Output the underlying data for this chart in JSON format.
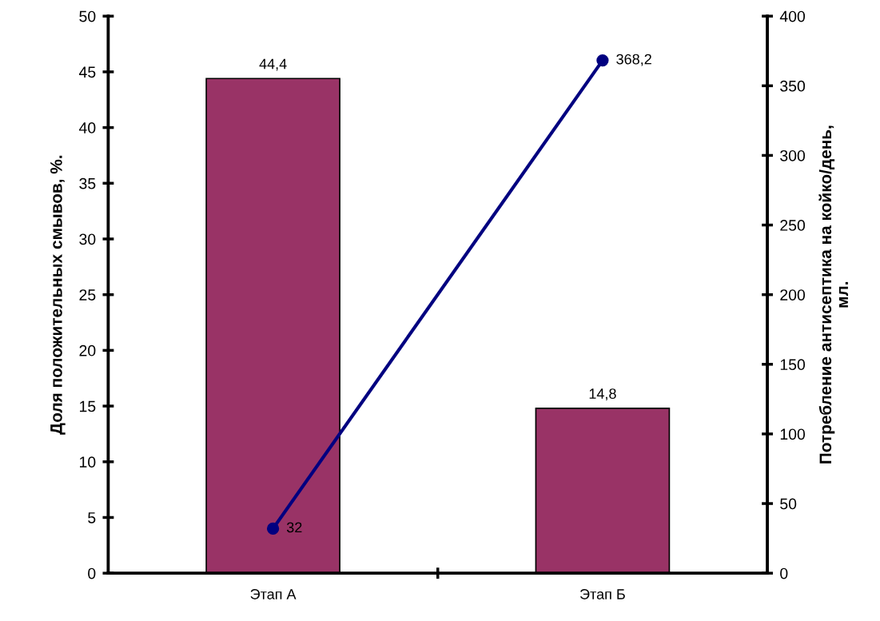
{
  "chart_data": {
    "type": "bar",
    "categories": [
      "Этап А",
      "Этап Б"
    ],
    "ylabel": "Доля положительных смывов, %.",
    "y2label": "Потребление антисептика на койко/день, мл.",
    "ylim": [
      0,
      50
    ],
    "yticks": [
      0,
      5,
      10,
      15,
      20,
      25,
      30,
      35,
      40,
      45,
      50
    ],
    "y2lim": [
      0,
      400
    ],
    "y2ticks": [
      0,
      50,
      100,
      150,
      200,
      250,
      300,
      350,
      400
    ],
    "grid": false,
    "legend": false,
    "series": [
      {
        "color": "#993366",
        "values": [
          44.4,
          14.8
        ],
        "value_labels": [
          "44,4",
          "14,8"
        ]
      },
      {
        "type": "line",
        "axis": "y2",
        "color": "#000080",
        "marker": "circle",
        "line_style": "solid",
        "values": [
          32,
          368.2
        ],
        "value_labels": [
          "32",
          "368,2"
        ]
      }
    ]
  }
}
